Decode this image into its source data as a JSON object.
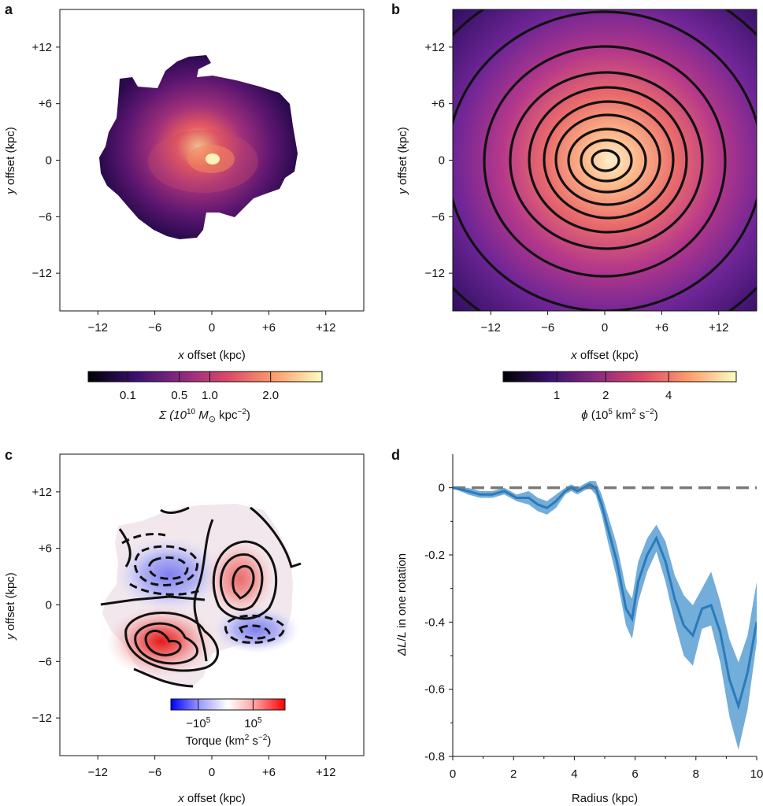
{
  "chart_data": [
    {
      "panel": "a",
      "type": "heatmap",
      "xlabel_italic": "x",
      "xlabel_rest": " offset (kpc)",
      "ylabel_italic": "y",
      "ylabel_rest": " offset (kpc)",
      "xlim": [
        -16,
        16
      ],
      "ylim": [
        -16,
        16
      ],
      "xticks": [
        "−12",
        "−6",
        "0",
        "+6",
        "+12"
      ],
      "xtick_values": [
        -12,
        -6,
        0,
        6,
        12
      ],
      "yticks": [
        "+12",
        "+6",
        "0",
        "−6",
        "−12"
      ],
      "ytick_values": [
        12,
        6,
        0,
        -6,
        -12
      ],
      "colorbar": {
        "ticks": [
          "0.1",
          "0.5",
          "1.0",
          "2.0"
        ],
        "tick_fractions": [
          0.17,
          0.39,
          0.52,
          0.78
        ],
        "label_prefix": "Σ (10",
        "label_exp1": "10",
        "label_mid": " M",
        "label_sub": "⊙",
        "label_unit": " kpc",
        "label_exp2": "−2",
        "label_suffix": ")",
        "colors": [
          "#000004",
          "#3b0f70",
          "#8c2981",
          "#de4968",
          "#fe9f6d",
          "#fcfdbf"
        ]
      }
    },
    {
      "panel": "b",
      "type": "heatmap",
      "xlabel_italic": "x",
      "xlabel_rest": " offset (kpc)",
      "ylabel_italic": "y",
      "ylabel_rest": " offset (kpc)",
      "xlim": [
        -16,
        16
      ],
      "ylim": [
        -16,
        16
      ],
      "xticks": [
        "−12",
        "−6",
        "0",
        "+6",
        "+12"
      ],
      "xtick_values": [
        -12,
        -6,
        0,
        6,
        12
      ],
      "yticks": [
        "+12",
        "+6",
        "0",
        "−6",
        "−12"
      ],
      "ytick_values": [
        12,
        6,
        0,
        -6,
        -12
      ],
      "colorbar": {
        "ticks": [
          "1",
          "2",
          "4"
        ],
        "tick_fractions": [
          0.23,
          0.44,
          0.71
        ],
        "label_phi": "ϕ",
        "label_prefix": " (10",
        "label_exp1": "5",
        "label_unit": " km",
        "label_exp2": "2",
        "label_unit2": " s",
        "label_exp3": "−2",
        "label_suffix": ")",
        "colors": [
          "#000004",
          "#3b0f70",
          "#8c2981",
          "#de4968",
          "#fe9f6d",
          "#fcfdbf"
        ]
      }
    },
    {
      "panel": "c",
      "type": "heatmap",
      "xlabel_italic": "x",
      "xlabel_rest": " offset (kpc)",
      "ylabel_italic": "y",
      "ylabel_rest": " offset (kpc)",
      "xlim": [
        -16,
        16
      ],
      "ylim": [
        -16,
        16
      ],
      "xticks": [
        "−12",
        "−6",
        "0",
        "+6",
        "+12"
      ],
      "xtick_values": [
        -12,
        -6,
        0,
        6,
        12
      ],
      "yticks": [
        "+12",
        "+6",
        "0",
        "−6",
        "−12"
      ],
      "ytick_values": [
        12,
        6,
        0,
        -6,
        -12
      ],
      "colorbar": {
        "ticks": [
          "−10",
          "10"
        ],
        "tick_exps": [
          "5",
          "5"
        ],
        "tick_fractions": [
          0.24,
          0.72
        ],
        "label_prefix": "Torque (km",
        "label_exp1": "2",
        "label_unit": " s",
        "label_exp2": "−2",
        "label_suffix": ")",
        "colors": [
          "#0000ff",
          "#9999ff",
          "#ffffff",
          "#ff9999",
          "#ff0000"
        ]
      }
    },
    {
      "panel": "d",
      "type": "line",
      "xlabel": "Radius (kpc)",
      "ylabel_italic1": "ΔL",
      "ylabel_mid": "/",
      "ylabel_italic2": "L",
      "ylabel_rest": " in one rotation",
      "xlim": [
        0,
        10
      ],
      "ylim": [
        -0.8,
        0.1
      ],
      "xticks": [
        "0",
        "2",
        "4",
        "6",
        "8",
        "10"
      ],
      "xtick_values": [
        0,
        2,
        4,
        6,
        8,
        10
      ],
      "yticks": [
        "0",
        "-0.2",
        "-0.4",
        "-0.6",
        "-0.8"
      ],
      "ytick_values": [
        0,
        -0.2,
        -0.4,
        -0.6,
        -0.8
      ],
      "reference_line": 0,
      "color": "#2b7bba",
      "band_color": "#5b9fd4",
      "x": [
        0,
        0.5,
        0.9,
        1.3,
        1.7,
        2.1,
        2.5,
        2.8,
        3.1,
        3.4,
        3.7,
        3.9,
        4.1,
        4.3,
        4.5,
        4.7,
        4.9,
        5.1,
        5.4,
        5.7,
        5.9,
        6.1,
        6.4,
        6.7,
        7.0,
        7.3,
        7.6,
        7.9,
        8.2,
        8.5,
        8.8,
        9.1,
        9.4,
        9.7,
        10.0
      ],
      "y": [
        0,
        -0.01,
        -0.02,
        -0.02,
        -0.01,
        -0.03,
        -0.03,
        -0.05,
        -0.06,
        -0.04,
        -0.01,
        0,
        -0.01,
        0,
        0.01,
        0,
        -0.05,
        -0.12,
        -0.22,
        -0.36,
        -0.39,
        -0.28,
        -0.2,
        -0.15,
        -0.22,
        -0.33,
        -0.41,
        -0.44,
        -0.36,
        -0.35,
        -0.43,
        -0.57,
        -0.65,
        -0.55,
        -0.4
      ],
      "y_low": [
        0,
        -0.02,
        -0.03,
        -0.03,
        -0.02,
        -0.04,
        -0.05,
        -0.07,
        -0.08,
        -0.06,
        -0.02,
        -0.01,
        -0.02,
        -0.01,
        0,
        -0.02,
        -0.08,
        -0.16,
        -0.27,
        -0.41,
        -0.45,
        -0.34,
        -0.25,
        -0.19,
        -0.28,
        -0.4,
        -0.5,
        -0.53,
        -0.42,
        -0.41,
        -0.52,
        -0.68,
        -0.78,
        -0.66,
        -0.46
      ],
      "y_high": [
        0,
        0,
        -0.01,
        -0.01,
        0,
        -0.02,
        -0.01,
        -0.03,
        -0.04,
        -0.02,
        0,
        0.01,
        0,
        0.01,
        0.02,
        0.02,
        -0.02,
        -0.08,
        -0.17,
        -0.3,
        -0.33,
        -0.22,
        -0.15,
        -0.11,
        -0.16,
        -0.26,
        -0.32,
        -0.35,
        -0.3,
        -0.25,
        -0.34,
        -0.45,
        -0.52,
        -0.44,
        -0.28
      ]
    }
  ]
}
